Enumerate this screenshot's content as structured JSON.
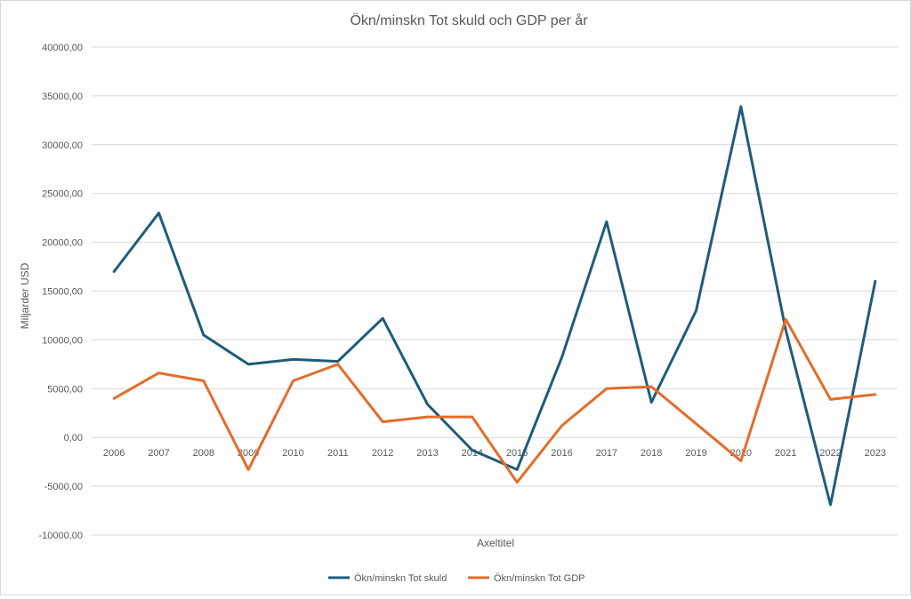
{
  "chart_data": {
    "type": "line",
    "title": "Ökn/minskn Tot skuld och GDP per år",
    "xlabel": "Axeltitel",
    "ylabel": "Miljarder USD",
    "ylim": [
      -10000,
      40000
    ],
    "ytick_step": 5000,
    "ytick_labels": [
      "-10000,00",
      "-5000,00",
      "0,00",
      "5000,00",
      "10000,00",
      "15000,00",
      "20000,00",
      "25000,00",
      "30000,00",
      "35000,00",
      "40000,00"
    ],
    "categories": [
      "2006",
      "2007",
      "2008",
      "2009",
      "2010",
      "2011",
      "2012",
      "2013",
      "2014",
      "2015",
      "2016",
      "2017",
      "2018",
      "2019",
      "2020",
      "2021",
      "2022",
      "2023"
    ],
    "grid": true,
    "legend_position": "bottom",
    "series": [
      {
        "name": "Ökn/minskn Tot skuld",
        "color": "#1f5c7a",
        "values": [
          17000,
          23000,
          10500,
          7500,
          8000,
          7800,
          12200,
          3400,
          -1300,
          -3300,
          8200,
          22100,
          3600,
          13000,
          33900,
          11000,
          -6900,
          16000
        ]
      },
      {
        "name": "Ökn/minskn Tot GDP",
        "color": "#e46c2a",
        "values": [
          4000,
          6600,
          5800,
          -3300,
          5800,
          7500,
          1600,
          2100,
          2100,
          -4600,
          1200,
          5000,
          5200,
          1400,
          -2400,
          12100,
          3900,
          4400
        ]
      }
    ]
  }
}
